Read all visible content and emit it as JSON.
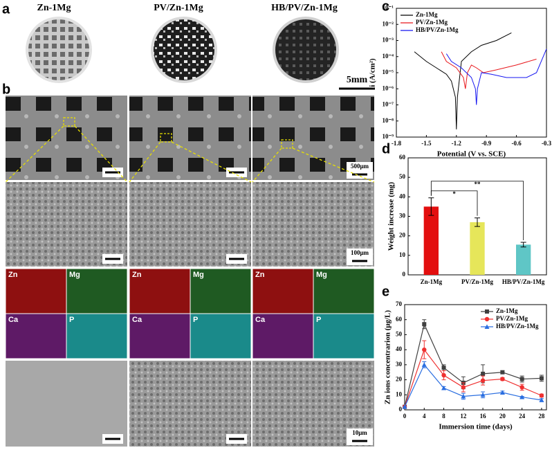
{
  "figure": {
    "panel_labels": [
      "a",
      "b",
      "c",
      "d",
      "e"
    ],
    "samples": [
      "Zn-1Mg",
      "PV/Zn-1Mg",
      "HB/PV/Zn-1Mg"
    ],
    "scale_bars": [
      "5mm",
      "500μm",
      "100μm",
      "10μm"
    ],
    "eds_elements": [
      "Zn",
      "Mg",
      "Ca",
      "P"
    ]
  },
  "chart_data": [
    {
      "type": "line",
      "x_label": "Potential (V vs. SCE)",
      "y_label": "i (A/cm²)",
      "log_y": true,
      "xlim": [
        -1.8,
        -0.3
      ],
      "xticks": [
        -1.8,
        -1.5,
        -1.2,
        -0.9,
        -0.6,
        -0.3
      ],
      "ylim": [
        1e-09,
        0.1
      ],
      "yticks": [
        {
          "value": 0.1,
          "label": "10⁻¹"
        },
        {
          "value": 0.01,
          "label": "10⁻²"
        },
        {
          "value": 0.001,
          "label": "10⁻³"
        },
        {
          "value": 0.0001,
          "label": "10⁻⁴"
        },
        {
          "value": 1e-05,
          "label": "10⁻⁵"
        },
        {
          "value": 1e-06,
          "label": "10⁻⁶"
        },
        {
          "value": 1e-07,
          "label": "10⁻⁷"
        },
        {
          "value": 1e-08,
          "label": "10⁻⁸"
        },
        {
          "value": 1e-09,
          "label": "10⁻⁹"
        }
      ],
      "legend": "upper left",
      "series": [
        {
          "name": "Zn-1Mg",
          "color": "#000000",
          "x": [
            -1.62,
            -1.5,
            -1.4,
            -1.3,
            -1.25,
            -1.21,
            -1.2,
            -1.19,
            -1.15,
            -1.05,
            -0.95,
            -0.8,
            -0.65
          ],
          "values": [
            0.0002,
            5e-05,
            2e-05,
            8e-06,
            3e-06,
            3e-07,
            3e-09,
            3e-07,
            5e-05,
            0.0002,
            0.0005,
            0.001,
            0.003
          ]
        },
        {
          "name": "PV/Zn-1Mg",
          "color": "#e8161b",
          "x": [
            -1.35,
            -1.3,
            -1.2,
            -1.13,
            -1.11,
            -1.09,
            -1.05,
            -1.0,
            -0.93,
            -0.8,
            -0.6,
            -0.4
          ],
          "values": [
            0.0002,
            5e-05,
            2e-05,
            5e-06,
            1e-06,
            1e-05,
            3e-05,
            2e-05,
            1e-05,
            1.5e-05,
            3e-05,
            7e-05
          ]
        },
        {
          "name": "HB/PV/Zn-1Mg",
          "color": "#1515f0",
          "x": [
            -1.3,
            -1.25,
            -1.15,
            -1.05,
            -1.01,
            -1.0,
            -0.99,
            -0.95,
            -0.85,
            -0.7,
            -0.5,
            -0.4,
            -0.3
          ],
          "values": [
            0.00015,
            5e-05,
            2e-05,
            5e-06,
            1e-06,
            1e-07,
            1e-06,
            1e-05,
            8e-06,
            5e-06,
            5e-06,
            1e-05,
            0.0003
          ]
        }
      ]
    },
    {
      "type": "bar",
      "y_label": "Weight increase (mg)",
      "categories": [
        "Zn-1Mg",
        "PV/Zn-1Mg",
        "HB/PV/Zn-1Mg"
      ],
      "values": [
        35,
        27,
        15.5
      ],
      "errors": [
        4.5,
        2.2,
        1.2
      ],
      "colors": [
        "#e30f0f",
        "#e6e65a",
        "#5fc6c6"
      ],
      "ylim": [
        0,
        60
      ],
      "yticks": [
        0,
        10,
        20,
        30,
        40,
        50,
        60
      ],
      "annotations": [
        "*",
        "**"
      ]
    },
    {
      "type": "line",
      "x_label": "Immersion time (days)",
      "y_label": "Zn ions concentrarion (μg/L)",
      "xlim": [
        0,
        29
      ],
      "xticks": [
        0,
        4,
        8,
        12,
        16,
        20,
        24,
        28
      ],
      "ylim": [
        0,
        70
      ],
      "yticks": [
        0,
        10,
        20,
        30,
        40,
        50,
        60,
        70
      ],
      "legend": "upper right",
      "x": [
        0,
        4,
        8,
        12,
        16,
        20,
        24,
        28
      ],
      "series": [
        {
          "name": "Zn-1Mg",
          "color": "#404040",
          "marker": "square",
          "values": [
            2,
            57,
            28,
            18,
            24,
            25,
            20.5,
            21
          ],
          "errors": [
            0,
            3,
            2,
            4,
            6,
            1,
            2,
            2
          ]
        },
        {
          "name": "PV/Zn-1Mg",
          "color": "#ef3030",
          "marker": "circle",
          "values": [
            2,
            40,
            23,
            15,
            19.5,
            20.5,
            15,
            9.5
          ],
          "errors": [
            0,
            6,
            3,
            3,
            3,
            1,
            2,
            1
          ]
        },
        {
          "name": "HB/PV/Zn-1Mg",
          "color": "#2a6ee0",
          "marker": "triangle",
          "values": [
            2,
            30,
            14.5,
            9,
            10,
            11.5,
            8.5,
            6.5
          ],
          "errors": [
            0,
            2,
            1,
            2,
            2,
            1,
            0.5,
            1
          ]
        }
      ]
    }
  ]
}
